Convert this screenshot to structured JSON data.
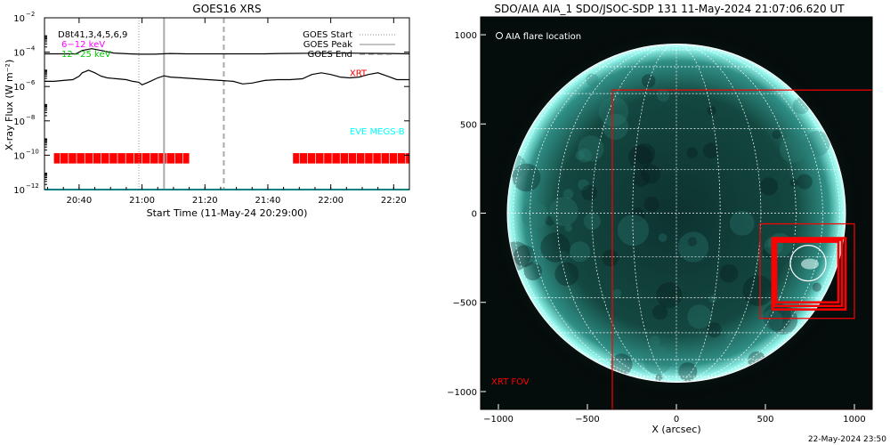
{
  "chart_data": [
    {
      "type": "line",
      "title": "GOES16 XRS",
      "ylabel": "X-ray Flux (W m⁻²)",
      "xlabel": "Start Time (11-May-24 20:29:00)",
      "yscale": "log",
      "ylim_exp": [
        -12,
        -2
      ],
      "ytick_exponents": [
        -12,
        -10,
        -8,
        -6,
        -4,
        -2
      ],
      "xlim_min": [
        0,
        116
      ],
      "xticks": [
        {
          "min": 11,
          "label": "20:40"
        },
        {
          "min": 31,
          "label": "21:00"
        },
        {
          "min": 51,
          "label": "21:20"
        },
        {
          "min": 71,
          "label": "21:40"
        },
        {
          "min": 91,
          "label": "22:00"
        },
        {
          "min": 111,
          "label": "22:20"
        }
      ],
      "flare_lines": [
        {
          "name": "GOES Start",
          "min": 30,
          "style": "dotted",
          "color": "#999999"
        },
        {
          "name": "GOES Peak",
          "min": 38,
          "style": "solid",
          "color": "#aaaaaa"
        },
        {
          "name": "GOES End",
          "min": 57,
          "style": "dashed",
          "color": "#aaaaaa"
        }
      ],
      "legend_left": [
        {
          "text": "D8t41,3,4,5,6,9",
          "color": "#000000"
        },
        {
          "text": "6−12 keV",
          "color": "#ff00ff"
        },
        {
          "text": "12−25 keV",
          "color": "#00cc00"
        }
      ],
      "series": [
        {
          "color": "#000000",
          "x": [
            0,
            5,
            10,
            12,
            15,
            18,
            22,
            27,
            30,
            35,
            40,
            45,
            50,
            55,
            60,
            65,
            70,
            75,
            80,
            85,
            90,
            95,
            100,
            105,
            110,
            116
          ],
          "y_exp": [
            -4.1,
            -4.1,
            -4.1,
            -3.9,
            -3.8,
            -3.9,
            -4.05,
            -4.1,
            -4.12,
            -4.12,
            -4.08,
            -4.1,
            -4.1,
            -4.1,
            -4.1,
            -4.1,
            -4.1,
            -4.08,
            -4.07,
            -4.06,
            -4.05,
            -4.05,
            -4.06,
            -4.07,
            -4.08,
            -4.1
          ]
        },
        {
          "color": "#000000",
          "x": [
            0,
            3,
            6,
            9,
            11,
            12,
            14,
            16,
            18,
            20,
            23,
            26,
            28,
            30,
            31,
            33,
            36,
            38,
            40,
            44,
            48,
            52,
            56,
            60,
            63,
            66,
            70,
            74,
            78,
            82,
            85,
            88,
            91,
            94,
            97,
            100,
            103,
            106,
            109,
            112,
            116
          ],
          "y_exp": [
            -5.7,
            -5.7,
            -5.65,
            -5.6,
            -5.4,
            -5.2,
            -5.05,
            -5.2,
            -5.4,
            -5.5,
            -5.55,
            -5.6,
            -5.7,
            -5.75,
            -5.9,
            -5.75,
            -5.5,
            -5.38,
            -5.45,
            -5.5,
            -5.55,
            -5.6,
            -5.65,
            -5.7,
            -5.85,
            -5.8,
            -5.65,
            -5.6,
            -5.6,
            -5.55,
            -5.3,
            -5.2,
            -5.3,
            -5.45,
            -5.5,
            -5.45,
            -5.3,
            -5.2,
            -5.4,
            -5.6,
            -5.6
          ]
        },
        {
          "color": "#00ffff",
          "x": [
            0,
            116
          ],
          "y_exp": [
            -12,
            -12
          ]
        }
      ],
      "annotations": [
        {
          "text": "XRT",
          "color": "#ff0000",
          "min": 97,
          "y_exp": -5.4
        },
        {
          "text": "EVE MEGS-B",
          "color": "#00ffff",
          "min": 97,
          "y_exp": -8.8
        }
      ],
      "coverage": {
        "color": "#ff0000",
        "y_exp_range": [
          -10.48,
          -9.88
        ],
        "intervals_min": [
          [
            3,
            46
          ],
          [
            79,
            116
          ]
        ]
      },
      "timestamp": ""
    },
    {
      "type": "scatter",
      "title": "SDO/AIA AIA_1 SDO/JSOC-SDP 131 11-May-2024 21:07:06.620 UT",
      "xlabel": "X (arcsec)",
      "ylabel": "",
      "xlim": [
        -1100,
        1100
      ],
      "ylim": [
        -1100,
        1100
      ],
      "xticks": [
        -1000,
        -500,
        0,
        500,
        1000
      ],
      "yticks": [
        -1000,
        -500,
        0,
        500,
        1000
      ],
      "tick_labels_x": [
        "−1000",
        "−500",
        "0",
        "500",
        "1000"
      ],
      "tick_labels_y": [
        "−1000",
        "−500",
        "0",
        "500",
        "1000"
      ],
      "solar_radius_arcsec": 950,
      "grid_spacing_deg": 15,
      "legend": "AIA flare location",
      "fov_label": "XRT FOV",
      "xrt_fov": {
        "x0": -360,
        "x1": 1100,
        "y0": -1100,
        "y1": 690
      },
      "flare_location": {
        "x": 740,
        "y": -280,
        "r": 100
      },
      "zoom_boxes": [
        {
          "x0": 470,
          "x1": 1000,
          "y0": -590,
          "y1": -60
        },
        {
          "x0": 540,
          "x1": 950,
          "y0": -540,
          "y1": -140
        },
        {
          "x0": 550,
          "x1": 930,
          "y0": -520,
          "y1": -150
        },
        {
          "x0": 560,
          "x1": 910,
          "y0": -500,
          "y1": -160
        }
      ],
      "colors": {
        "disk": "#0f3b3a",
        "limb": "#9ff6ef",
        "grid": "#ffffff",
        "fov": "#ff0000",
        "flare": "#ffffff"
      }
    }
  ],
  "footer": {
    "timestamp": "22-May-2024 23:50"
  }
}
